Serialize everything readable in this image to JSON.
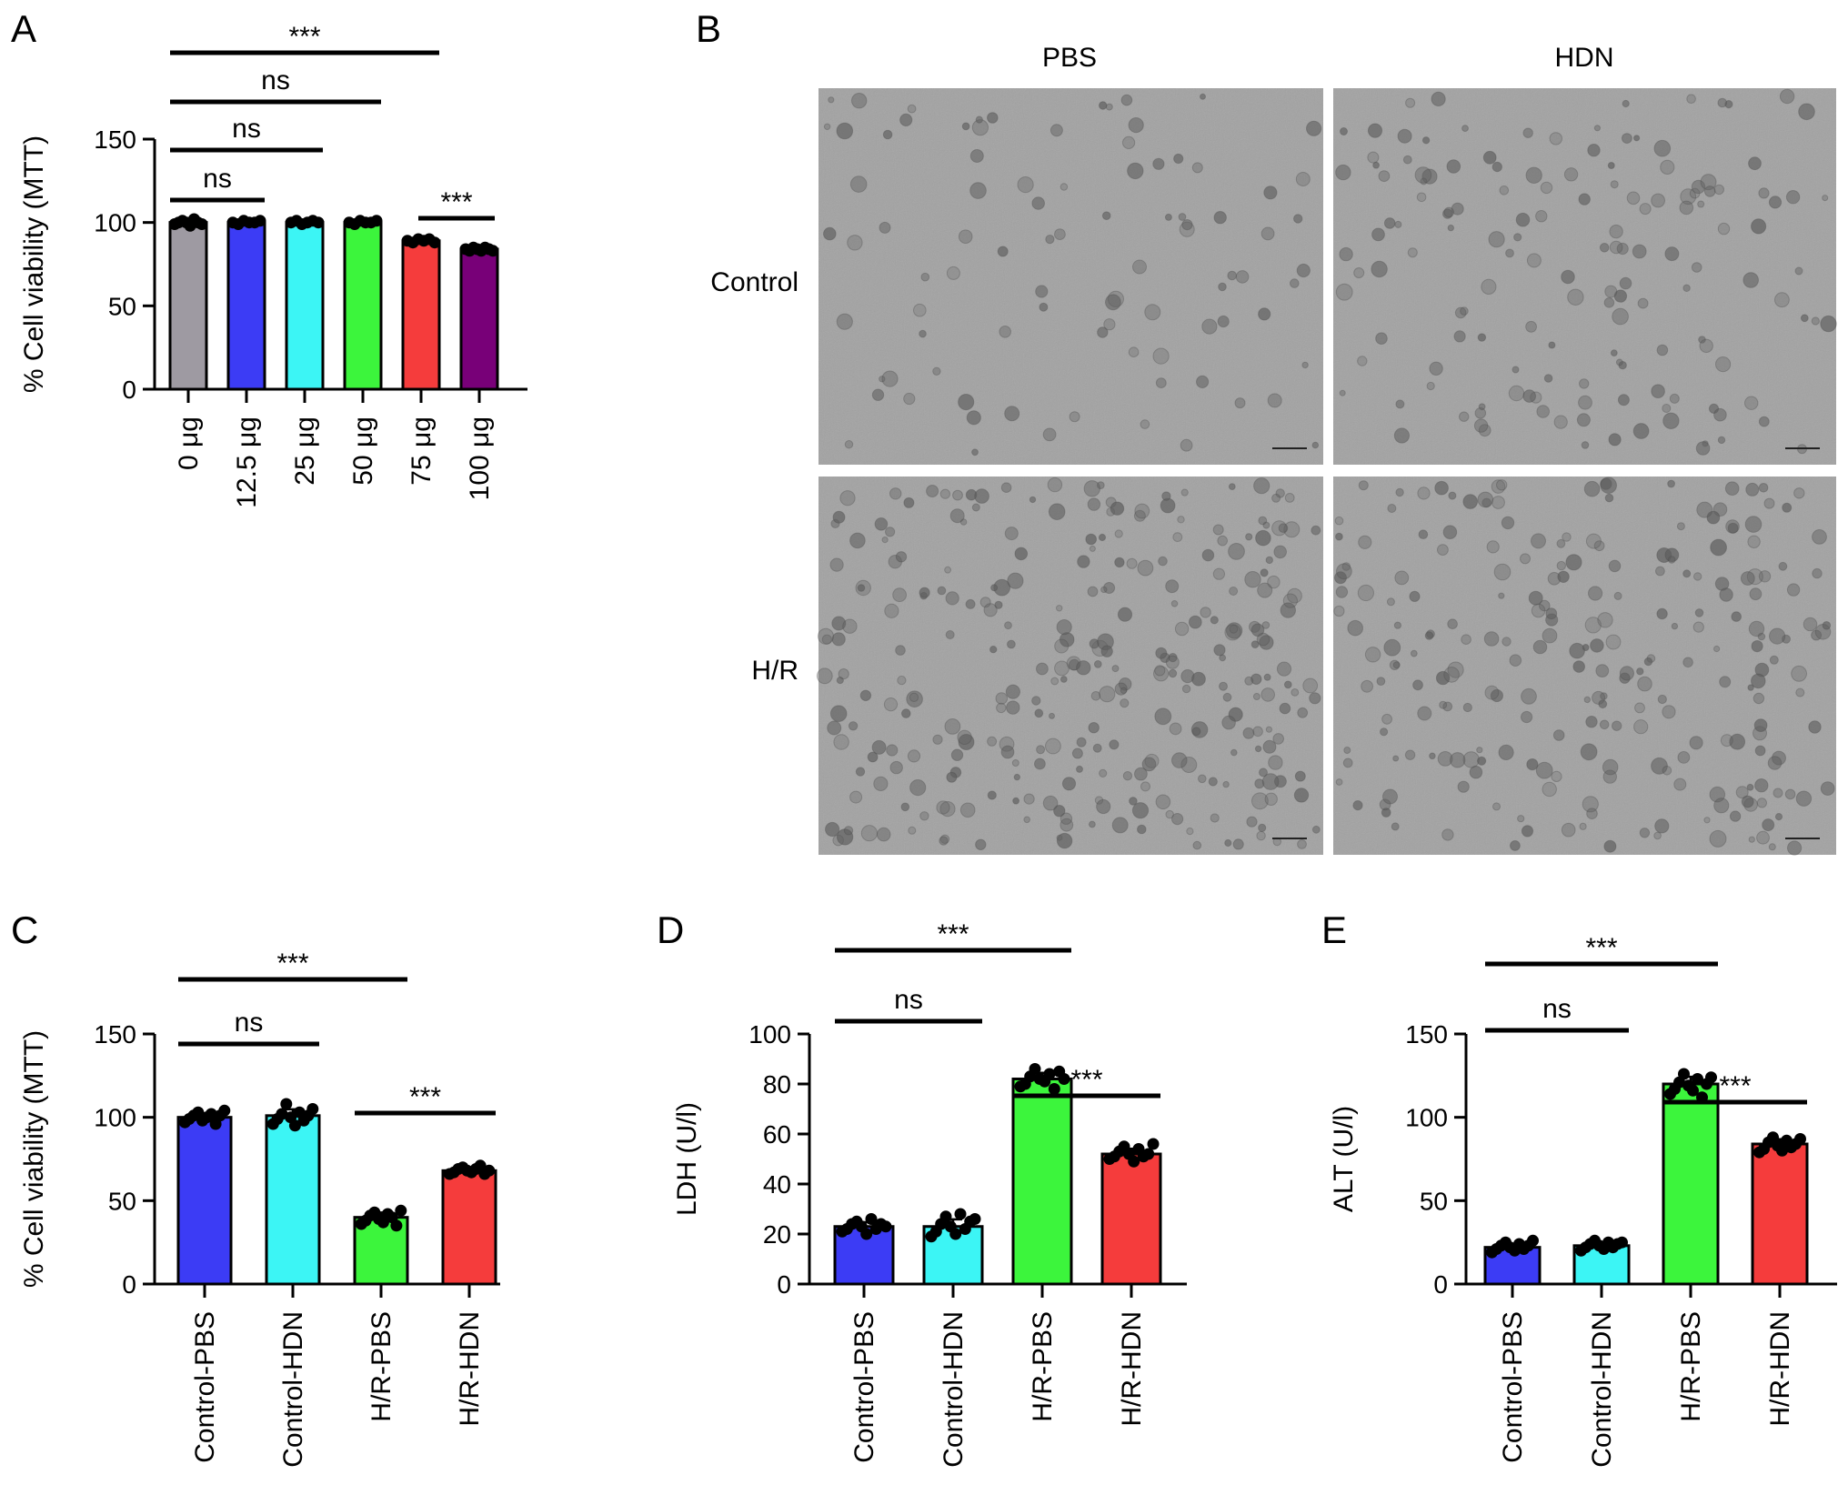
{
  "panels": {
    "A": "A",
    "B": "B",
    "C": "C",
    "D": "D",
    "E": "E"
  },
  "micrographs": {
    "columns": [
      "PBS",
      "HDN"
    ],
    "rows": [
      "Control",
      "H/R"
    ],
    "background": "#a2a2a2",
    "cell_color": "#5e5e5e"
  },
  "chart_data": [
    {
      "panel": "A",
      "type": "bar",
      "ylabel": "% Cell viability (MTT)",
      "ylim": [
        0,
        150
      ],
      "yticks": [
        0,
        50,
        100,
        150
      ],
      "categories": [
        "0 μg",
        "12.5 μg",
        "25 μg",
        "50 μg",
        "75 μg",
        "100 μg"
      ],
      "values": [
        100,
        100,
        100,
        100,
        89,
        84
      ],
      "colors": [
        "#9e9aa2",
        "#3c3cf5",
        "#3cf5f5",
        "#3cf53c",
        "#f53c3c",
        "#780078"
      ],
      "points": [
        [
          99,
          100,
          101,
          100,
          98,
          102,
          100,
          99
        ],
        [
          100,
          99,
          101,
          100,
          100,
          101
        ],
        [
          100,
          101,
          99,
          100,
          101,
          100
        ],
        [
          100,
          99,
          101,
          100,
          100,
          101
        ],
        [
          89,
          88,
          90,
          89,
          90,
          88
        ],
        [
          84,
          83,
          85,
          84,
          83,
          85,
          84,
          83
        ]
      ],
      "comparisons": [
        {
          "from": 0,
          "to": 4,
          "label": "***"
        },
        {
          "from": 0,
          "to": 3,
          "label": "ns"
        },
        {
          "from": 0,
          "to": 2,
          "label": "ns"
        },
        {
          "from": 0,
          "to": 1,
          "label": "ns"
        },
        {
          "from": 4,
          "to": 5,
          "label": "***"
        }
      ]
    },
    {
      "panel": "C",
      "type": "bar",
      "ylabel": "% Cell viability (MTT)",
      "ylim": [
        0,
        150
      ],
      "yticks": [
        0,
        50,
        100,
        150
      ],
      "categories": [
        "Control-PBS",
        "Control-HDN",
        "H/R-PBS",
        "H/R-HDN"
      ],
      "values": [
        100,
        101,
        40,
        68
      ],
      "colors": [
        "#3c3cf5",
        "#3cf5f5",
        "#3cf53c",
        "#f53c3c"
      ],
      "points": [
        [
          97,
          99,
          101,
          103,
          98,
          100,
          102,
          96,
          101,
          104
        ],
        [
          96,
          99,
          102,
          108,
          100,
          95,
          103,
          98,
          101,
          105
        ],
        [
          36,
          38,
          41,
          43,
          39,
          37,
          42,
          40,
          35,
          44
        ],
        [
          66,
          67,
          69,
          70,
          68,
          67,
          69,
          71,
          66,
          68
        ]
      ],
      "comparisons": [
        {
          "from": 0,
          "to": 2,
          "label": "***"
        },
        {
          "from": 0,
          "to": 1,
          "label": "ns"
        },
        {
          "from": 2,
          "to": 3,
          "label": "***"
        }
      ]
    },
    {
      "panel": "D",
      "type": "bar",
      "ylabel": "LDH (U/l)",
      "ylim": [
        0,
        100
      ],
      "yticks": [
        0,
        20,
        40,
        60,
        80,
        100
      ],
      "categories": [
        "Control-PBS",
        "Control-HDN",
        "H/R-PBS",
        "H/R-HDN"
      ],
      "values": [
        23,
        23,
        82,
        52
      ],
      "colors": [
        "#3c3cf5",
        "#3cf5f5",
        "#3cf53c",
        "#f53c3c"
      ],
      "points": [
        [
          21,
          22,
          24,
          25,
          23,
          20,
          26,
          22,
          24,
          23
        ],
        [
          19,
          21,
          24,
          27,
          23,
          20,
          28,
          22,
          25,
          26
        ],
        [
          79,
          80,
          83,
          86,
          82,
          81,
          84,
          78,
          85,
          82
        ],
        [
          50,
          51,
          53,
          55,
          52,
          49,
          54,
          51,
          52,
          56
        ]
      ],
      "comparisons": [
        {
          "from": 0,
          "to": 2,
          "label": "***"
        },
        {
          "from": 0,
          "to": 1,
          "label": "ns"
        },
        {
          "from": 2,
          "to": 3,
          "label": "***"
        }
      ]
    },
    {
      "panel": "E",
      "type": "bar",
      "ylabel": "ALT (U/l)",
      "ylim": [
        0,
        150
      ],
      "yticks": [
        0,
        50,
        100,
        150
      ],
      "categories": [
        "Control-PBS",
        "Control-HDN",
        "H/R-PBS",
        "H/R-HDN"
      ],
      "values": [
        22,
        23,
        120,
        84
      ],
      "colors": [
        "#3c3cf5",
        "#3cf5f5",
        "#3cf53c",
        "#f53c3c"
      ],
      "points": [
        [
          19,
          21,
          23,
          25,
          22,
          20,
          24,
          21,
          23,
          26
        ],
        [
          20,
          22,
          24,
          26,
          23,
          21,
          25,
          22,
          24,
          25
        ],
        [
          114,
          117,
          121,
          126,
          119,
          116,
          123,
          112,
          120,
          124
        ],
        [
          79,
          81,
          85,
          88,
          83,
          80,
          86,
          82,
          84,
          87
        ]
      ],
      "comparisons": [
        {
          "from": 0,
          "to": 2,
          "label": "***"
        },
        {
          "from": 0,
          "to": 1,
          "label": "ns"
        },
        {
          "from": 2,
          "to": 3,
          "label": "***"
        }
      ]
    }
  ]
}
